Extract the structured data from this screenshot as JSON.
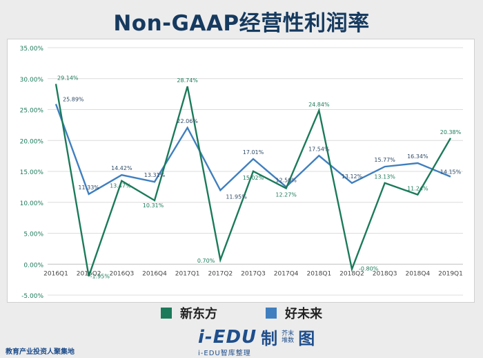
{
  "header": {
    "title": "Non-GAAP经营性利润率"
  },
  "chart_data": {
    "type": "line",
    "title": "Non-GAAP经营性利润率",
    "categories": [
      "2016Q1",
      "2016Q2",
      "2016Q3",
      "2016Q4",
      "2017Q1",
      "2017Q2",
      "2017Q3",
      "2017Q4",
      "2018Q1",
      "2018Q2",
      "2018Q3",
      "2018Q4",
      "2019Q1"
    ],
    "ylim": [
      -5,
      35
    ],
    "yticks": [
      -5,
      0,
      5,
      10,
      15,
      20,
      25,
      30,
      35
    ],
    "ytick_labels": [
      "-5.00%",
      "0.00%",
      "5.00%",
      "10.00%",
      "15.00%",
      "20.00%",
      "25.00%",
      "30.00%",
      "35.00%"
    ],
    "grid": true,
    "legend_position": "bottom",
    "series": [
      {
        "name": "新东方",
        "color": "#1b7a5a",
        "values": [
          29.14,
          -1.95,
          13.47,
          10.31,
          28.74,
          0.7,
          15.02,
          12.27,
          24.84,
          -0.8,
          13.13,
          11.24,
          20.38
        ],
        "labels": [
          "29.14%",
          "-1.95%",
          "13.47%",
          "10.31%",
          "28.74%",
          "0.70%",
          "15.02%",
          "12.27%",
          "24.84%",
          "-0.80%",
          "13.13%",
          "11.24%",
          "20.38%"
        ]
      },
      {
        "name": "好未来",
        "color": "#3f7fbf",
        "values": [
          25.89,
          11.33,
          14.42,
          13.31,
          22.06,
          11.95,
          17.01,
          12.5,
          17.54,
          13.12,
          15.77,
          16.34,
          14.15
        ],
        "labels": [
          "25.89%",
          "11.33%",
          "14.42%",
          "13.31%",
          "22.06%",
          "11.95%",
          "17.01%",
          "12.50%",
          "17.54%",
          "13.12%",
          "15.77%",
          "16.34%",
          "14.15%"
        ]
      }
    ]
  },
  "footer": {
    "logo_text": "i-EDU",
    "logo_zh": "制",
    "logo_small_1": "芥末",
    "logo_small_2": "堆数",
    "logo_zh_2": "图",
    "left_text": "教育产业投资人聚集地",
    "center_text": "i-EDU智库整理"
  }
}
